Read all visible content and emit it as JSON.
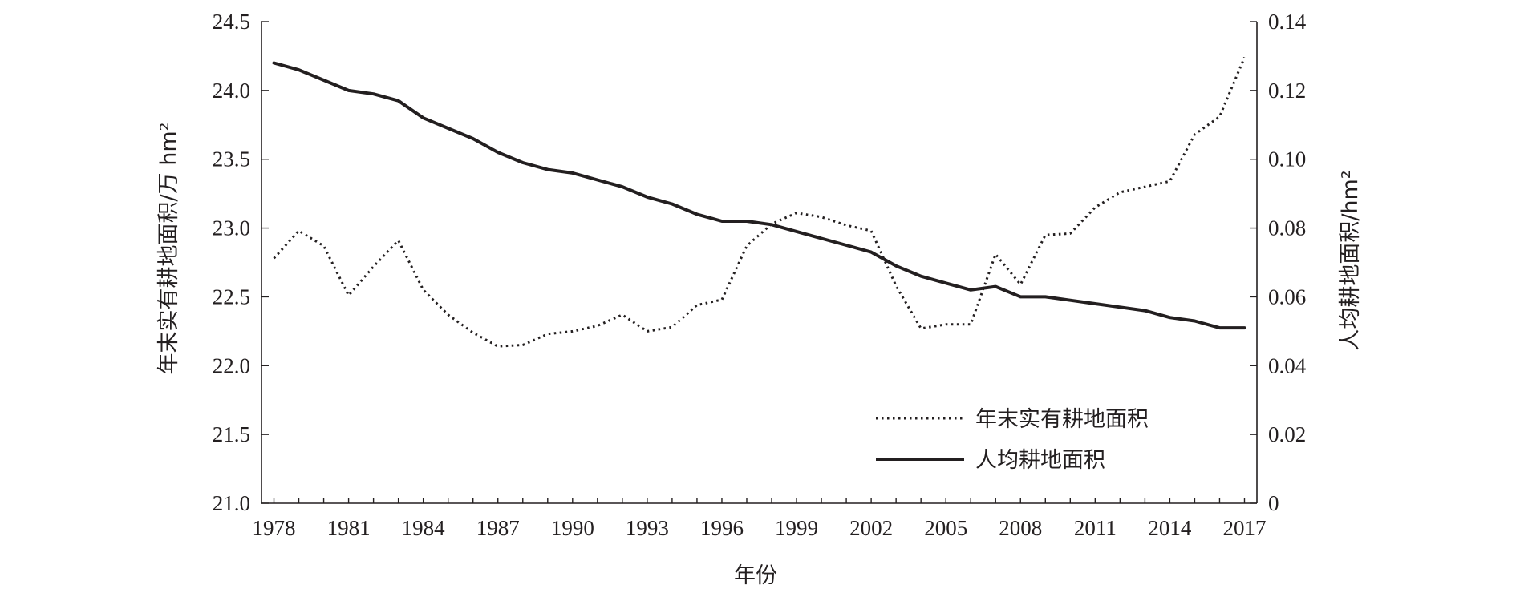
{
  "chart_data": {
    "type": "line",
    "title": "",
    "xlabel": "年份",
    "ylabel_left": "年末实有耕地面积/万 hm²",
    "ylabel_right": "人均耕地面积/hm²",
    "x_tick_labels": [
      "1978",
      "1981",
      "1984",
      "1987",
      "1990",
      "1993",
      "1996",
      "1999",
      "2002",
      "2005",
      "2008",
      "2011",
      "2014",
      "2017"
    ],
    "y_left_ticks": [
      "21.0",
      "21.5",
      "22.0",
      "22.5",
      "23.0",
      "23.5",
      "24.0",
      "24.5"
    ],
    "y_right_ticks": [
      "0",
      "0.02",
      "0.04",
      "0.06",
      "0.08",
      "0.10",
      "0.12",
      "0.14"
    ],
    "xlim": [
      1977.5,
      2017.5
    ],
    "ylim_left": [
      21.0,
      24.5
    ],
    "ylim_right": [
      0,
      0.14
    ],
    "grid": false,
    "legend_position": "lower-right",
    "x": [
      1978,
      1979,
      1980,
      1981,
      1982,
      1983,
      1984,
      1985,
      1986,
      1987,
      1988,
      1989,
      1990,
      1991,
      1992,
      1993,
      1994,
      1995,
      1996,
      1997,
      1998,
      1999,
      2000,
      2001,
      2002,
      2003,
      2004,
      2005,
      2006,
      2007,
      2008,
      2009,
      2010,
      2011,
      2012,
      2013,
      2014,
      2015,
      2016,
      2017
    ],
    "series": [
      {
        "name": "年末实有耕地面积",
        "axis": "left",
        "style": "dotted",
        "color": "#231f20",
        "values": [
          22.78,
          22.98,
          22.87,
          22.51,
          22.72,
          22.91,
          22.55,
          22.37,
          22.24,
          22.14,
          22.15,
          22.23,
          22.25,
          22.29,
          22.37,
          22.25,
          22.28,
          22.44,
          22.48,
          22.87,
          23.03,
          23.11,
          23.08,
          23.02,
          22.98,
          22.58,
          22.27,
          22.3,
          22.3,
          22.81,
          22.59,
          22.95,
          22.96,
          23.15,
          23.26,
          23.3,
          23.34,
          23.68,
          23.81,
          24.24
        ]
      },
      {
        "name": "人均耕地面积",
        "axis": "right",
        "style": "solid",
        "color": "#231f20",
        "values": [
          0.128,
          0.126,
          0.123,
          0.12,
          0.119,
          0.117,
          0.112,
          0.109,
          0.106,
          0.102,
          0.099,
          0.097,
          0.096,
          0.094,
          0.092,
          0.089,
          0.087,
          0.084,
          0.082,
          0.082,
          0.081,
          0.079,
          0.077,
          0.075,
          0.073,
          0.069,
          0.066,
          0.064,
          0.062,
          0.063,
          0.06,
          0.06,
          0.059,
          0.058,
          0.057,
          0.056,
          0.054,
          0.053,
          0.051,
          0.051
        ]
      }
    ]
  }
}
